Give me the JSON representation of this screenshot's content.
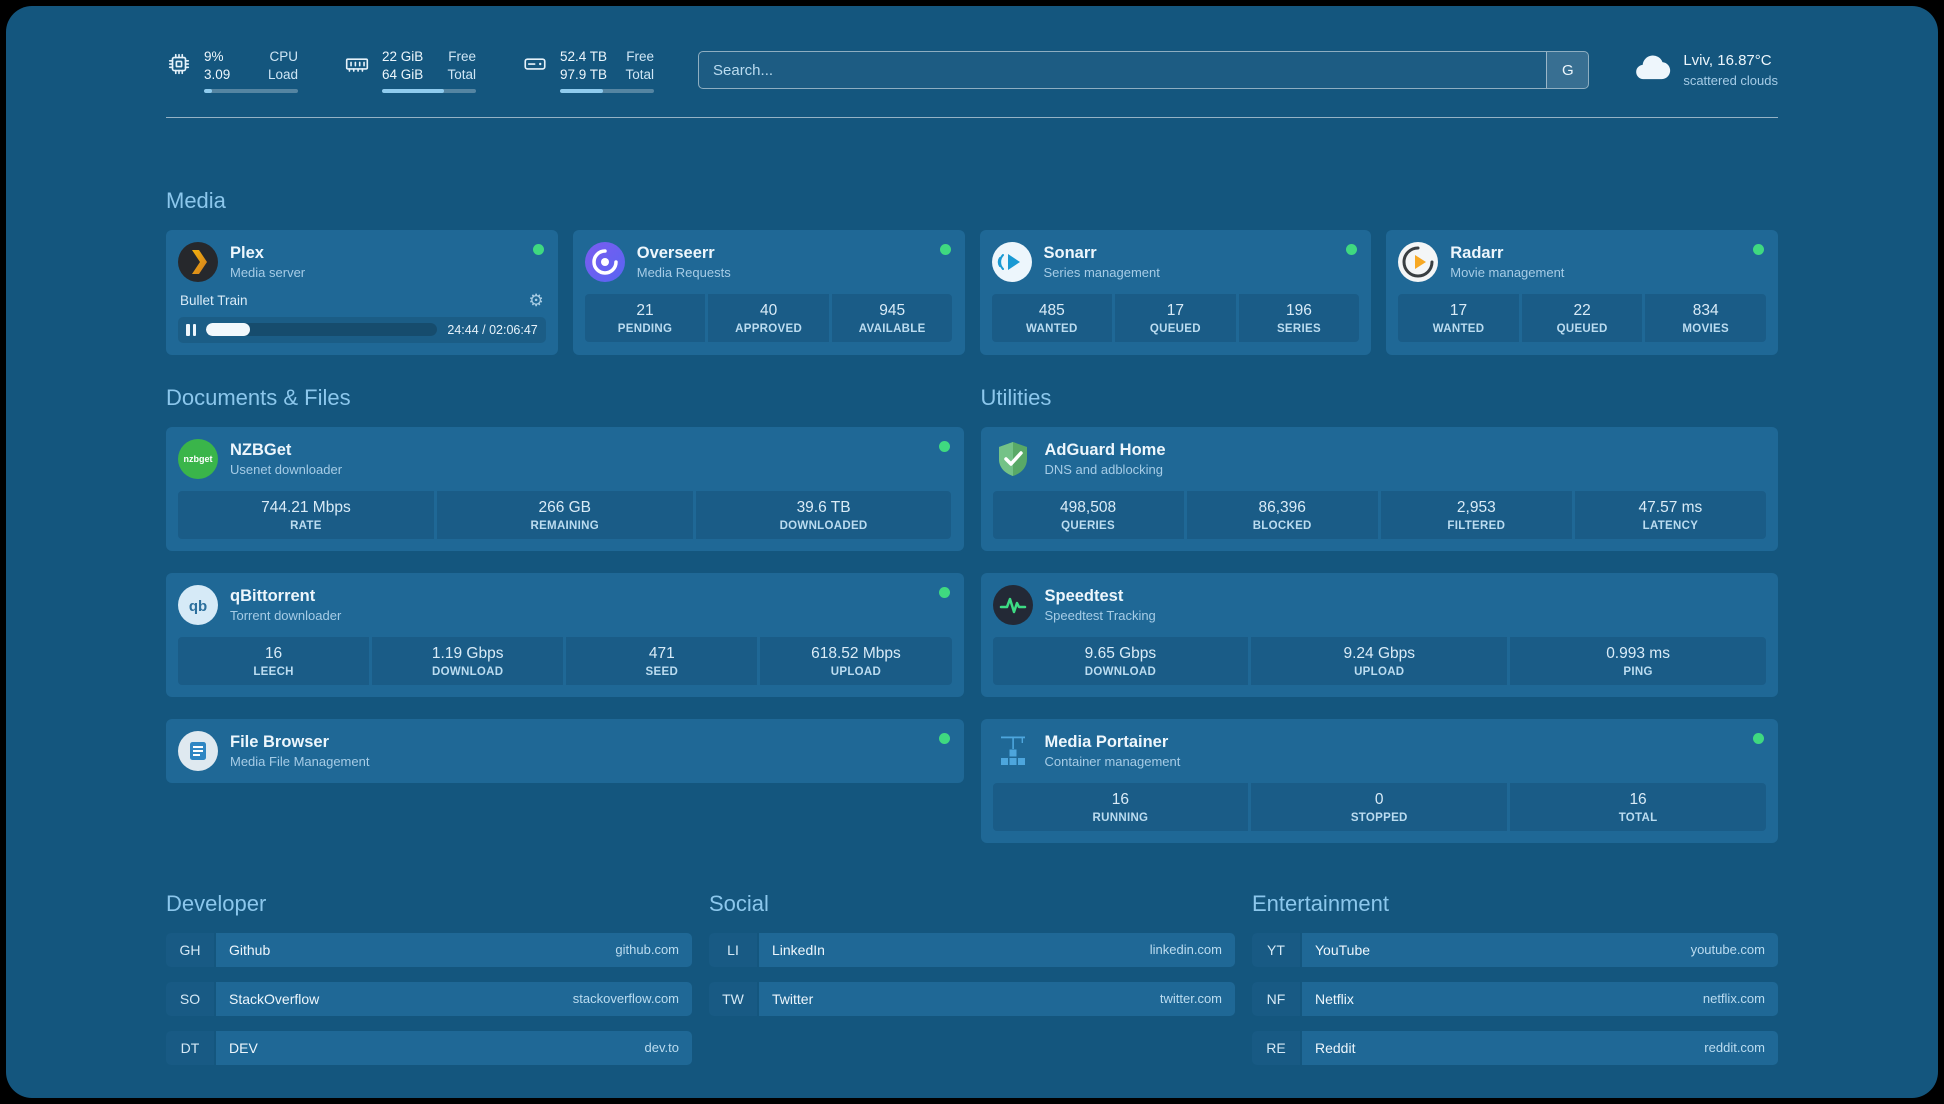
{
  "colors": {
    "background": "#14567E",
    "card": "#1F6896",
    "status_online": "#3FD980",
    "heading": "#8CC7EC"
  },
  "topbar": {
    "resources": [
      {
        "icon": "cpu-icon",
        "value_primary": "9%",
        "value_secondary": "3.09",
        "label_primary": "CPU",
        "label_secondary": "Load",
        "bar_percent": 9
      },
      {
        "icon": "memory-icon",
        "value_primary": "22 GiB",
        "value_secondary": "64 GiB",
        "label_primary": "Free",
        "label_secondary": "Total",
        "bar_percent": 66
      },
      {
        "icon": "disk-icon",
        "value_primary": "52.4 TB",
        "value_secondary": "97.9 TB",
        "label_primary": "Free",
        "label_secondary": "Total",
        "bar_percent": 46
      }
    ],
    "search": {
      "placeholder": "Search...",
      "provider_label": "G"
    },
    "weather": {
      "location": "Lviv, 16.87°C",
      "condition": "scattered clouds"
    }
  },
  "media": {
    "title": "Media",
    "plex": {
      "name": "Plex",
      "description": "Media server",
      "status": "online",
      "now_playing": {
        "title": "Bullet Train",
        "time_display": "24:44 / 02:06:47",
        "progress_percent": 19
      }
    },
    "overseerr": {
      "name": "Overseerr",
      "description": "Media Requests",
      "status": "online",
      "stats": [
        {
          "value": "21",
          "label": "PENDING"
        },
        {
          "value": "40",
          "label": "APPROVED"
        },
        {
          "value": "945",
          "label": "AVAILABLE"
        }
      ]
    },
    "sonarr": {
      "name": "Sonarr",
      "description": "Series management",
      "status": "online",
      "stats": [
        {
          "value": "485",
          "label": "WANTED"
        },
        {
          "value": "17",
          "label": "QUEUED"
        },
        {
          "value": "196",
          "label": "SERIES"
        }
      ]
    },
    "radarr": {
      "name": "Radarr",
      "description": "Movie management",
      "status": "online",
      "stats": [
        {
          "value": "17",
          "label": "WANTED"
        },
        {
          "value": "22",
          "label": "QUEUED"
        },
        {
          "value": "834",
          "label": "MOVIES"
        }
      ]
    }
  },
  "documents": {
    "title": "Documents & Files",
    "nzbget": {
      "name": "NZBGet",
      "description": "Usenet downloader",
      "status": "online",
      "stats": [
        {
          "value": "744.21 Mbps",
          "label": "RATE"
        },
        {
          "value": "266 GB",
          "label": "REMAINING"
        },
        {
          "value": "39.6 TB",
          "label": "DOWNLOADED"
        }
      ]
    },
    "qbittorrent": {
      "name": "qBittorrent",
      "description": "Torrent downloader",
      "status": "online",
      "stats": [
        {
          "value": "16",
          "label": "LEECH"
        },
        {
          "value": "1.19 Gbps",
          "label": "DOWNLOAD"
        },
        {
          "value": "471",
          "label": "SEED"
        },
        {
          "value": "618.52 Mbps",
          "label": "UPLOAD"
        }
      ]
    },
    "filebrowser": {
      "name": "File Browser",
      "description": "Media File Management",
      "status": "online"
    }
  },
  "utilities": {
    "title": "Utilities",
    "adguard": {
      "name": "AdGuard Home",
      "description": "DNS and adblocking",
      "stats": [
        {
          "value": "498,508",
          "label": "QUERIES"
        },
        {
          "value": "86,396",
          "label": "BLOCKED"
        },
        {
          "value": "2,953",
          "label": "FILTERED"
        },
        {
          "value": "47.57 ms",
          "label": "LATENCY"
        }
      ]
    },
    "speedtest": {
      "name": "Speedtest",
      "description": "Speedtest Tracking",
      "stats": [
        {
          "value": "9.65 Gbps",
          "label": "DOWNLOAD"
        },
        {
          "value": "9.24 Gbps",
          "label": "UPLOAD"
        },
        {
          "value": "0.993 ms",
          "label": "PING"
        }
      ]
    },
    "portainer": {
      "name": "Media Portainer",
      "description": "Container management",
      "status": "online",
      "stats": [
        {
          "value": "16",
          "label": "RUNNING"
        },
        {
          "value": "0",
          "label": "STOPPED"
        },
        {
          "value": "16",
          "label": "TOTAL"
        }
      ]
    }
  },
  "bookmarks": {
    "developer": {
      "title": "Developer",
      "items": [
        {
          "abbr": "GH",
          "name": "Github",
          "domain": "github.com"
        },
        {
          "abbr": "SO",
          "name": "StackOverflow",
          "domain": "stackoverflow.com"
        },
        {
          "abbr": "DT",
          "name": "DEV",
          "domain": "dev.to"
        }
      ]
    },
    "social": {
      "title": "Social",
      "items": [
        {
          "abbr": "LI",
          "name": "LinkedIn",
          "domain": "linkedin.com"
        },
        {
          "abbr": "TW",
          "name": "Twitter",
          "domain": "twitter.com"
        }
      ]
    },
    "entertainment": {
      "title": "Entertainment",
      "items": [
        {
          "abbr": "YT",
          "name": "YouTube",
          "domain": "youtube.com"
        },
        {
          "abbr": "NF",
          "name": "Netflix",
          "domain": "netflix.com"
        },
        {
          "abbr": "RE",
          "name": "Reddit",
          "domain": "reddit.com"
        }
      ]
    }
  }
}
